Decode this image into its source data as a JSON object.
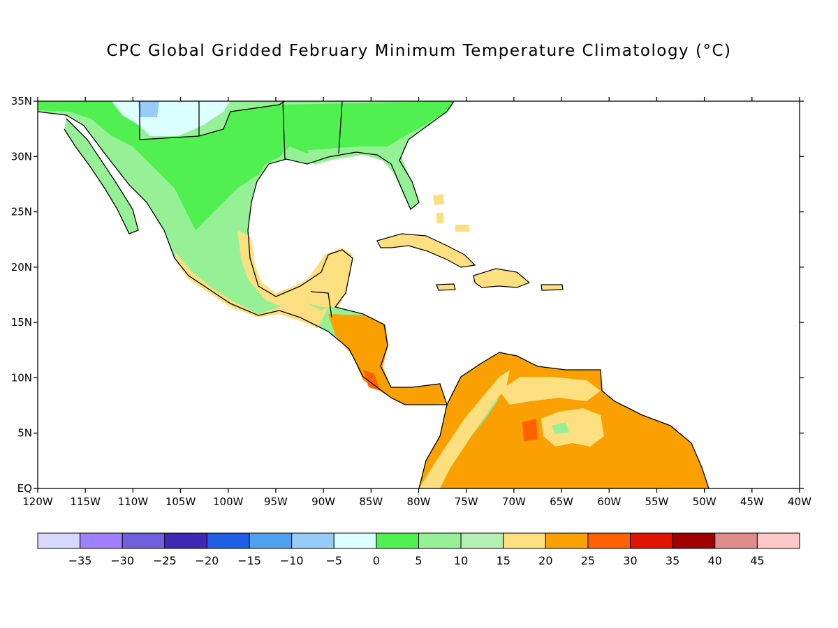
{
  "title": "CPC Global Gridded February Minimum Temperature Climatology (°C)",
  "map": {
    "lon_range": [
      -120,
      -40
    ],
    "lat_range": [
      0,
      35
    ],
    "lat_ticks": [
      "35N",
      "30N",
      "25N",
      "20N",
      "15N",
      "10N",
      "5N",
      "EQ"
    ],
    "lon_ticks": [
      "120W",
      "115W",
      "110W",
      "105W",
      "100W",
      "95W",
      "90W",
      "85W",
      "80W",
      "75W",
      "70W",
      "65W",
      "60W",
      "55W",
      "50W",
      "45W",
      "40W"
    ]
  },
  "colorbar": {
    "colors": [
      "#d8d8ff",
      "#a080ff",
      "#7060dc",
      "#4028b4",
      "#2060e8",
      "#50a0f0",
      "#96cdf8",
      "#dcffff",
      "#50f050",
      "#96f096",
      "#b4f0b4",
      "#fce080",
      "#faa000",
      "#ff6000",
      "#e01400",
      "#a00000",
      "#e08c8c",
      "#ffc8c8"
    ],
    "labels": [
      "-35",
      "-30",
      "-25",
      "-20",
      "-15",
      "-10",
      "-5",
      "0",
      "5",
      "10",
      "15",
      "20",
      "25",
      "30",
      "35",
      "40",
      "45"
    ]
  }
}
